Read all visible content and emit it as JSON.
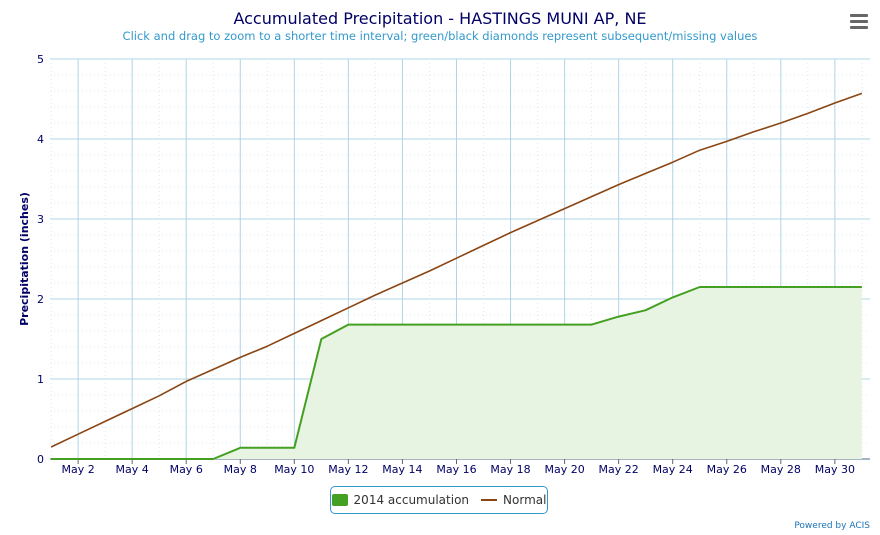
{
  "header": {
    "title": "Accumulated Precipitation - HASTINGS MUNI AP, NE",
    "subtitle": "Click and drag to zoom to a shorter time interval; green/black diamonds represent subsequent/missing values"
  },
  "menu_icon": "hamburger-menu-icon",
  "credits": "Powered by ACIS",
  "colors": {
    "accumulation": "#44a022",
    "accumulation_fill": "#e8f4e2",
    "normal": "#8b4513",
    "grid": "#b0d4e6",
    "axis_text": "#000066"
  },
  "chart_data": {
    "type": "line",
    "title": "Accumulated Precipitation - HASTINGS MUNI AP, NE",
    "subtitle": "Click and drag to zoom to a shorter time interval; green/black diamonds represent subsequent/missing values",
    "xlabel": "",
    "ylabel": "Precipitation (inches)",
    "ylim": [
      0,
      5
    ],
    "yticks": [
      "0",
      "1",
      "2",
      "3",
      "4",
      "5"
    ],
    "x_tick_labels": [
      "May 2",
      "May 4",
      "May 6",
      "May 8",
      "May 10",
      "May 12",
      "May 14",
      "May 16",
      "May 18",
      "May 20",
      "May 22",
      "May 24",
      "May 26",
      "May 28",
      "May 30"
    ],
    "x": [
      1,
      2,
      3,
      4,
      5,
      6,
      7,
      8,
      9,
      10,
      11,
      12,
      13,
      14,
      15,
      16,
      17,
      18,
      19,
      20,
      21,
      22,
      23,
      24,
      25,
      26,
      27,
      28,
      29,
      30,
      31
    ],
    "series": [
      {
        "name": "2014 accumulation",
        "style": "area",
        "values": [
          0,
          0,
          0,
          0,
          0,
          0,
          0,
          0.14,
          0.14,
          0.14,
          1.5,
          1.68,
          1.68,
          1.68,
          1.68,
          1.68,
          1.68,
          1.68,
          1.68,
          1.68,
          1.68,
          1.78,
          1.86,
          2.02,
          2.15,
          2.15,
          2.15,
          2.15,
          2.15,
          2.15,
          2.15
        ]
      },
      {
        "name": "Normal",
        "style": "line",
        "values": [
          0.15,
          0.31,
          0.47,
          0.63,
          0.79,
          0.97,
          1.12,
          1.27,
          1.41,
          1.57,
          1.73,
          1.89,
          2.05,
          2.2,
          2.35,
          2.51,
          2.67,
          2.83,
          2.98,
          3.13,
          3.28,
          3.43,
          3.57,
          3.71,
          3.86,
          3.97,
          4.09,
          4.2,
          4.32,
          4.45,
          4.57
        ]
      }
    ],
    "legend_position": "bottom-center",
    "grid": true
  }
}
